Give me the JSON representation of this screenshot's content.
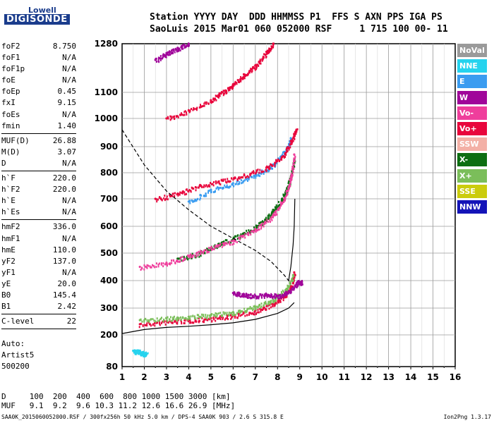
{
  "logo": {
    "line1": "Lowell",
    "line2": "DIGISONDE"
  },
  "header": {
    "line1": "Station YYYY DAY  DDD HHMMSS P1  FFS S AXN PPS IGA PS",
    "line2": "SaoLuis 2015 Mar01 060 052000 RSF     1 715 100 00- 11"
  },
  "params": [
    {
      "label": "foF2",
      "value": "8.750"
    },
    {
      "label": "foF1",
      "value": "N/A"
    },
    {
      "label": "foF1p",
      "value": "N/A"
    },
    {
      "label": "foE",
      "value": "N/A"
    },
    {
      "label": "foEp",
      "value": "0.45"
    },
    {
      "label": "fxI",
      "value": "9.15"
    },
    {
      "label": "foEs",
      "value": "N/A"
    },
    {
      "label": "fmin",
      "value": "1.40"
    },
    {
      "label": "MUF(D)",
      "value": "26.88"
    },
    {
      "label": "M(D)",
      "value": "3.07"
    },
    {
      "label": "D",
      "value": "N/A"
    },
    {
      "label": "h`F",
      "value": "220.0"
    },
    {
      "label": "h`F2",
      "value": "220.0"
    },
    {
      "label": "h`E",
      "value": "N/A"
    },
    {
      "label": "h`Es",
      "value": "N/A"
    },
    {
      "label": "hmF2",
      "value": "336.0"
    },
    {
      "label": "hmF1",
      "value": "N/A"
    },
    {
      "label": "hmE",
      "value": "110.0"
    },
    {
      "label": "yF2",
      "value": "137.0"
    },
    {
      "label": "yF1",
      "value": "N/A"
    },
    {
      "label": "yE",
      "value": "20.0"
    },
    {
      "label": "B0",
      "value": "145.4"
    },
    {
      "label": "B1",
      "value": "2.42"
    },
    {
      "label": "C-level",
      "value": "22"
    }
  ],
  "auto": {
    "line1": "Auto:",
    "line2": "Artist5",
    "line3": "500200"
  },
  "bottom": {
    "d_row": "D     100  200  400  600  800 1000 1500 3000 [km]",
    "muf_row": "MUF   9.1  9.2  9.6 10.3 11.2 12.6 16.6 26.9 [MHz]"
  },
  "footer": {
    "left": "SAA0K_2015060052000.RSF / 300fx256h 50 kHz 5.0 km / DPS-4 SAA0K 903 / 2.6 S 315.8 E",
    "right": "Ion2Png 1.3.17"
  },
  "legend": [
    {
      "label": "NoVal",
      "color": "#9a9a9a"
    },
    {
      "label": "NNE",
      "color": "#26d3ee"
    },
    {
      "label": "E",
      "color": "#3a9cf0"
    },
    {
      "label": "W",
      "color": "#a0069a"
    },
    {
      "label": "Vo-",
      "color": "#ef3e9c"
    },
    {
      "label": "Vo+",
      "color": "#e8063c"
    },
    {
      "label": "SSW",
      "color": "#f3b0a6"
    },
    {
      "label": "X-",
      "color": "#0d6e12"
    },
    {
      "label": "X+",
      "color": "#7bbe5a"
    },
    {
      "label": "SSE",
      "color": "#cbcc0d"
    },
    {
      "label": "NNW",
      "color": "#1414b8"
    }
  ],
  "chart_data": {
    "type": "scatter",
    "title": "",
    "xlabel": "",
    "ylabel": "",
    "xlim": [
      1,
      16
    ],
    "ylim": [
      80,
      1280
    ],
    "y_scale": "piecewise (compressed above 700)",
    "grid": true,
    "x_ticks": [
      "1",
      "2",
      "3",
      "4",
      "5",
      "6",
      "7",
      "8",
      "9",
      "10",
      "11",
      "12",
      "13",
      "14",
      "15",
      "16"
    ],
    "y_ticks": [
      "80",
      "200",
      "300",
      "400",
      "500",
      "600",
      "700",
      "800",
      "900",
      "1000",
      "1100",
      "1280"
    ],
    "series": [
      {
        "color": "#e8063c",
        "points": [
          [
            1.8,
            240
          ],
          [
            3,
            250
          ],
          [
            4,
            255
          ],
          [
            5,
            262
          ],
          [
            6,
            272
          ],
          [
            7,
            290
          ],
          [
            7.8,
            315
          ],
          [
            8.3,
            345
          ],
          [
            8.6,
            380
          ],
          [
            8.75,
            430
          ]
        ]
      },
      {
        "color": "#7bbe5a",
        "points": [
          [
            1.8,
            255
          ],
          [
            3,
            262
          ],
          [
            4,
            268
          ],
          [
            5,
            275
          ],
          [
            6,
            285
          ],
          [
            7,
            305
          ],
          [
            7.8,
            330
          ],
          [
            8.4,
            370
          ],
          [
            8.7,
            420
          ]
        ]
      },
      {
        "color": "#a0069a",
        "points": [
          [
            6,
            355
          ],
          [
            6.5,
            350
          ],
          [
            7,
            345
          ],
          [
            7.5,
            350
          ],
          [
            8,
            345
          ],
          [
            8.5,
            360
          ],
          [
            8.9,
            395
          ],
          [
            9.1,
            395
          ]
        ]
      },
      {
        "color": "#0d6e12",
        "points": [
          [
            3.5,
            480
          ],
          [
            4.5,
            500
          ],
          [
            5.5,
            540
          ],
          [
            6.5,
            575
          ],
          [
            7.3,
            615
          ],
          [
            7.8,
            660
          ],
          [
            8.2,
            700
          ],
          [
            8.5,
            760
          ],
          [
            8.75,
            850
          ]
        ]
      },
      {
        "color": "#ef3e9c",
        "points": [
          [
            1.8,
            450
          ],
          [
            3,
            465
          ],
          [
            4,
            490
          ],
          [
            5,
            520
          ],
          [
            6,
            545
          ],
          [
            7,
            590
          ],
          [
            7.8,
            640
          ],
          [
            8.3,
            700
          ],
          [
            8.6,
            780
          ],
          [
            8.75,
            870
          ]
        ]
      },
      {
        "color": "#3a9cf0",
        "points": [
          [
            4,
            690
          ],
          [
            5,
            735
          ],
          [
            6,
            760
          ],
          [
            7,
            790
          ],
          [
            7.8,
            830
          ],
          [
            8.3,
            880
          ],
          [
            8.6,
            930
          ]
        ]
      },
      {
        "color": "#e8063c",
        "points": [
          [
            2.5,
            700
          ],
          [
            3.5,
            720
          ],
          [
            4.5,
            750
          ],
          [
            5.5,
            770
          ],
          [
            6.5,
            790
          ],
          [
            7.5,
            820
          ],
          [
            8.2,
            860
          ],
          [
            8.6,
            920
          ],
          [
            8.85,
            960
          ]
        ]
      },
      {
        "color": "#e8063c",
        "points": [
          [
            3,
            1000
          ],
          [
            4,
            1030
          ],
          [
            5,
            1070
          ],
          [
            5.5,
            1100
          ],
          [
            6,
            1130
          ],
          [
            6.5,
            1165
          ],
          [
            7,
            1200
          ],
          [
            7.5,
            1250
          ],
          [
            7.8,
            1280
          ]
        ]
      },
      {
        "color": "#a0069a",
        "points": [
          [
            2.5,
            1220
          ],
          [
            3,
            1245
          ],
          [
            3.5,
            1265
          ],
          [
            4,
            1280
          ]
        ]
      },
      {
        "color": "#26d3ee",
        "points": [
          [
            1.5,
            140
          ],
          [
            1.7,
            138
          ],
          [
            1.9,
            132
          ],
          [
            2.1,
            128
          ]
        ]
      }
    ],
    "lines": [
      {
        "style": "solid",
        "points": [
          [
            1,
            205
          ],
          [
            2,
            220
          ],
          [
            3,
            228
          ],
          [
            4,
            232
          ],
          [
            5,
            238
          ],
          [
            6,
            245
          ],
          [
            7,
            258
          ],
          [
            8,
            280
          ],
          [
            8.5,
            300
          ],
          [
            8.75,
            320
          ]
        ]
      },
      {
        "style": "solid",
        "points": [
          [
            8.5,
            400
          ],
          [
            8.6,
            450
          ],
          [
            8.7,
            530
          ],
          [
            8.75,
            600
          ],
          [
            8.78,
            700
          ]
        ]
      },
      {
        "style": "dashed",
        "points": [
          [
            1,
            960
          ],
          [
            2,
            830
          ],
          [
            3,
            730
          ],
          [
            4,
            660
          ],
          [
            5,
            600
          ],
          [
            6,
            555
          ],
          [
            7,
            510
          ],
          [
            7.7,
            470
          ],
          [
            8.3,
            420
          ],
          [
            8.6,
            390
          ]
        ]
      }
    ]
  }
}
